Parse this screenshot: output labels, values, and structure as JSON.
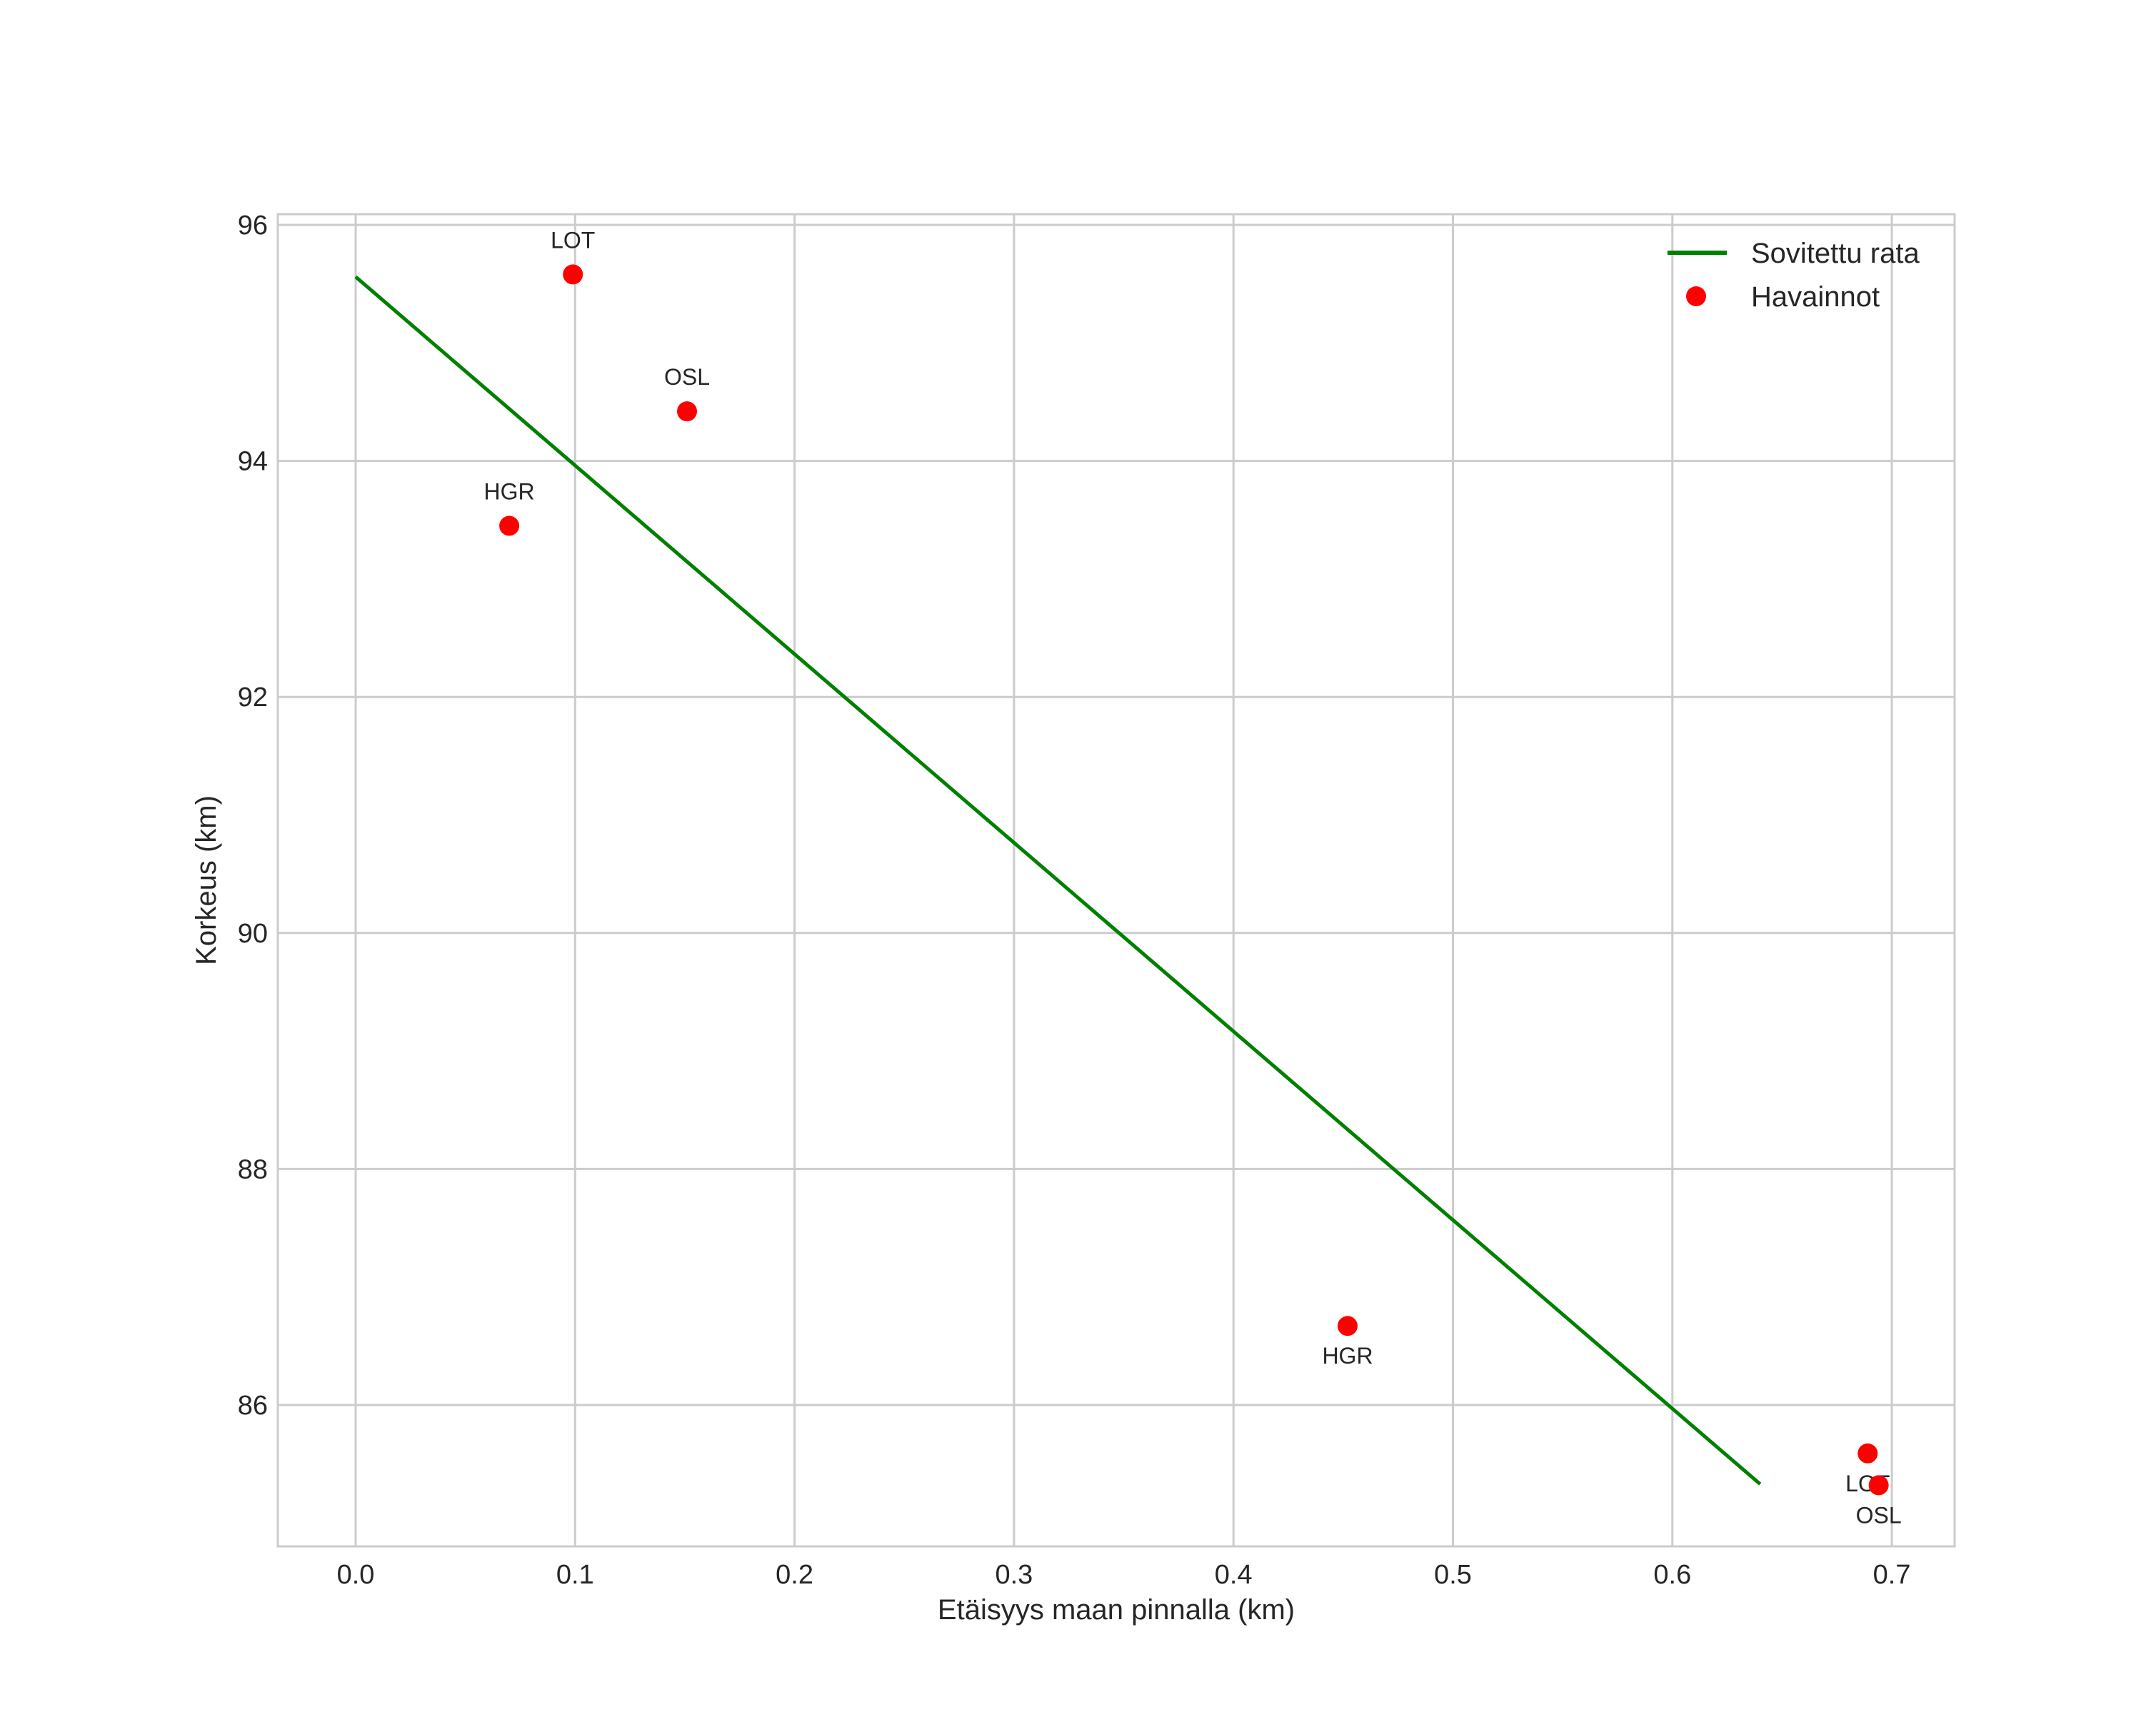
{
  "chart_data": {
    "type": "scatter",
    "title": "",
    "xlabel": "Etäisyys maan pinnalla (km)",
    "ylabel": "Korkeus (km)",
    "xlim": [
      -0.035,
      0.728
    ],
    "ylim": [
      84.8,
      96.1
    ],
    "xticks": [
      "0.0",
      "0.1",
      "0.2",
      "0.3",
      "0.4",
      "0.5",
      "0.6",
      "0.7"
    ],
    "yticks": [
      "86",
      "88",
      "90",
      "92",
      "94",
      "96"
    ],
    "grid": true,
    "legend_position": "upper right",
    "series": [
      {
        "name": "Sovitettu rata",
        "type": "line",
        "color": "#008000",
        "x": [
          0.0,
          0.64
        ],
        "y": [
          95.56,
          85.33
        ]
      },
      {
        "name": "Havainnot",
        "type": "scatter",
        "color": "#ff0000",
        "points": [
          {
            "label": "LOT",
            "x": 0.099,
            "y": 95.58,
            "label_pos": "above"
          },
          {
            "label": "OSL",
            "x": 0.151,
            "y": 94.42,
            "label_pos": "above"
          },
          {
            "label": "HGR",
            "x": 0.07,
            "y": 93.45,
            "label_pos": "above"
          },
          {
            "label": "HGR",
            "x": 0.452,
            "y": 86.67,
            "label_pos": "below"
          },
          {
            "label": "LOT",
            "x": 0.689,
            "y": 85.59,
            "label_pos": "below"
          },
          {
            "label": "OSL",
            "x": 0.694,
            "y": 85.32,
            "label_pos": "below"
          }
        ]
      }
    ]
  },
  "legend": {
    "items": [
      {
        "label": "Sovitettu rata",
        "icon": "line",
        "color": "#008000"
      },
      {
        "label": "Havainnot",
        "icon": "dot",
        "color": "#ff0000"
      }
    ]
  }
}
